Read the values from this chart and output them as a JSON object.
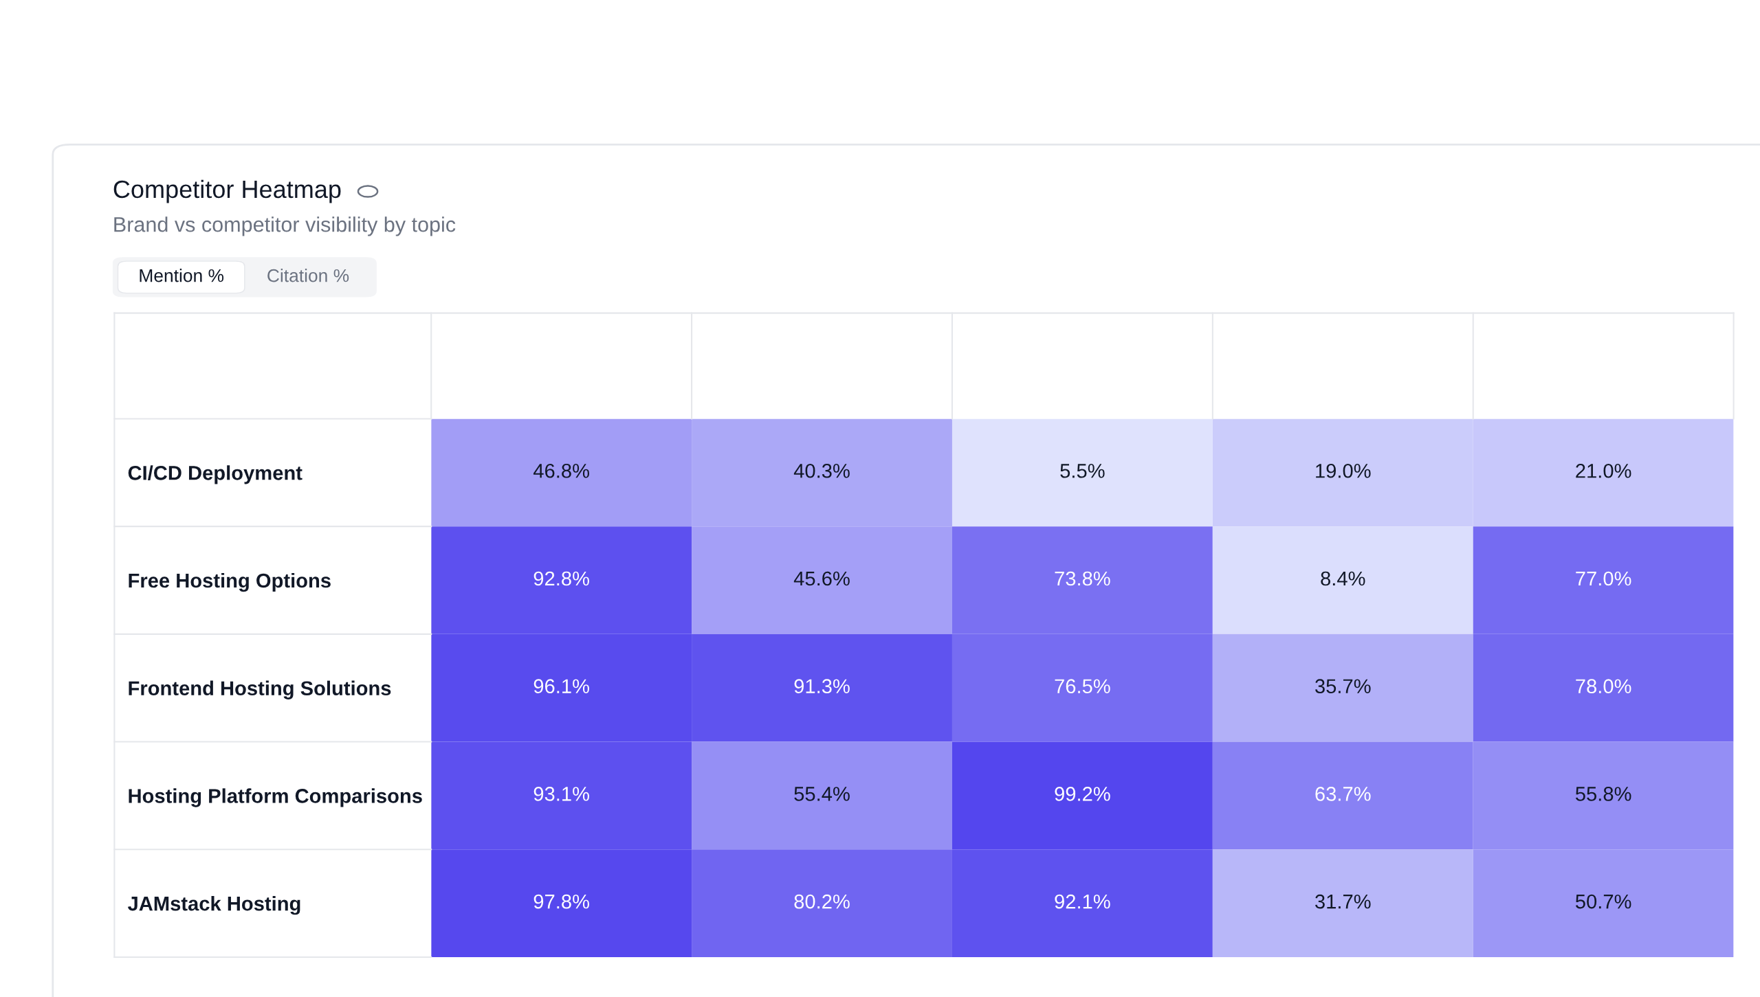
{
  "chart_data": {
    "type": "heatmap",
    "title": "Competitor Heatmap",
    "subtitle": "Brand vs competitor visibility by topic",
    "annotations": [
      "Mention %",
      "Citation %"
    ],
    "categories": [
      null,
      null,
      null,
      null,
      null
    ],
    "y_categories": [
      "CI/CD Deployment",
      "Free Hosting Options",
      "Frontend Hosting Solutions",
      "Hosting Platform Comparisons",
      "JAMstack Hosting"
    ],
    "cells": [
      [
        46.8,
        40.3,
        5.5,
        19.0,
        21.0
      ],
      [
        92.8,
        45.6,
        73.8,
        8.4,
        77.0
      ],
      [
        96.1,
        91.3,
        76.5,
        35.7,
        78.0
      ],
      [
        93.1,
        55.4,
        99.2,
        63.7,
        55.8
      ],
      [
        97.8,
        80.2,
        92.1,
        31.7,
        50.7
      ]
    ],
    "cell_labels": [
      [
        "46.8%",
        "40.3%",
        "5.5%",
        "19.0%",
        "21.0%"
      ],
      [
        "92.8%",
        "45.6%",
        "73.8%",
        "8.4%",
        "77.0%"
      ],
      [
        "96.1%",
        "91.3%",
        "76.5%",
        "35.7%",
        "78.0%"
      ],
      [
        "93.1%",
        "55.4%",
        "99.2%",
        "63.7%",
        "55.8%"
      ],
      [
        "97.8%",
        "80.2%",
        "92.1%",
        "31.7%",
        "50.7%"
      ]
    ]
  }
}
